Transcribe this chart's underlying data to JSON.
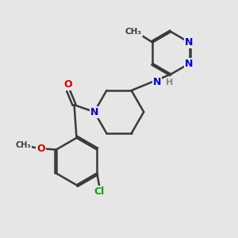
{
  "background_color": "#e6e6e6",
  "bond_color": "#3a3a3a",
  "atom_colors": {
    "N": "#0000cc",
    "O": "#cc0000",
    "Cl": "#00aa00",
    "C": "#3a3a3a",
    "H": "#888888"
  },
  "bond_width": 1.8,
  "figsize": [
    3.0,
    3.0
  ],
  "dpi": 100
}
